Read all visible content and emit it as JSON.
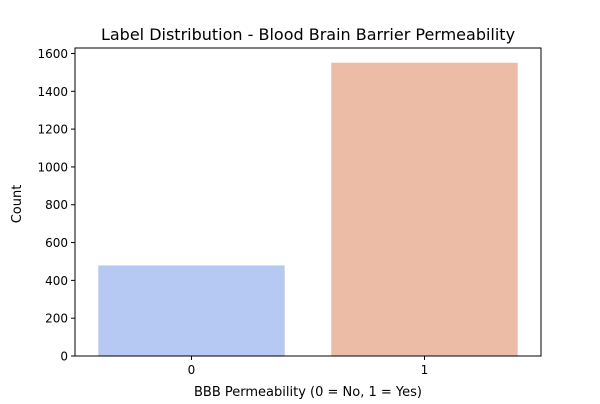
{
  "chart_data": {
    "type": "bar",
    "title": "Label Distribution - Blood Brain Barrier Permeability",
    "xlabel": "BBB Permeability (0 = No, 1 = Yes)",
    "ylabel": "Count",
    "categories": [
      "0",
      "1"
    ],
    "values": [
      479,
      1551
    ],
    "colors": [
      "#b5c9f2",
      "#edbca6"
    ],
    "ylim": [
      0,
      1629
    ],
    "yticks": [
      0,
      200,
      400,
      600,
      800,
      1000,
      1200,
      1400,
      1600
    ],
    "grid": false,
    "legend": "none"
  }
}
